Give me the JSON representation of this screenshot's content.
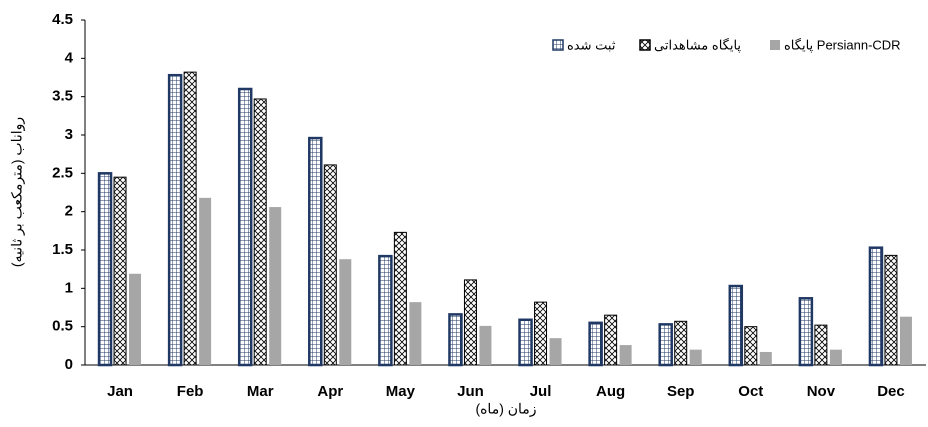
{
  "chart_data": {
    "type": "bar",
    "y_label": "رواناب (مترمکعب بر ثانیه)",
    "x_label": "زمان (ماه)",
    "categories": [
      "Jan",
      "Feb",
      "Mar",
      "Apr",
      "May",
      "Jun",
      "Jul",
      "Aug",
      "Sep",
      "Oct",
      "Nov",
      "Dec"
    ],
    "series": [
      {
        "name": "ثبت شده",
        "color": "#1f3864",
        "pattern": "grid",
        "values": [
          2.5,
          3.78,
          3.6,
          2.96,
          1.42,
          0.66,
          0.59,
          0.55,
          0.53,
          1.03,
          0.87,
          1.53
        ]
      },
      {
        "name": "پایگاه مشاهداتی",
        "color": "#000000",
        "pattern": "hatch",
        "values": [
          2.45,
          3.82,
          3.47,
          2.61,
          1.73,
          1.11,
          0.82,
          0.65,
          0.57,
          0.5,
          0.52,
          1.43
        ]
      },
      {
        "name": "پایگاه Persiann-CDR",
        "color": "#a6a6a6",
        "pattern": "solid",
        "values": [
          1.19,
          2.18,
          2.06,
          1.38,
          0.82,
          0.51,
          0.35,
          0.26,
          0.2,
          0.17,
          0.2,
          0.63
        ]
      }
    ],
    "ylim": [
      0,
      4.5
    ],
    "yticks": [
      0,
      0.5,
      1,
      1.5,
      2,
      2.5,
      3,
      3.5,
      4,
      4.5
    ],
    "legend": "top-right"
  }
}
